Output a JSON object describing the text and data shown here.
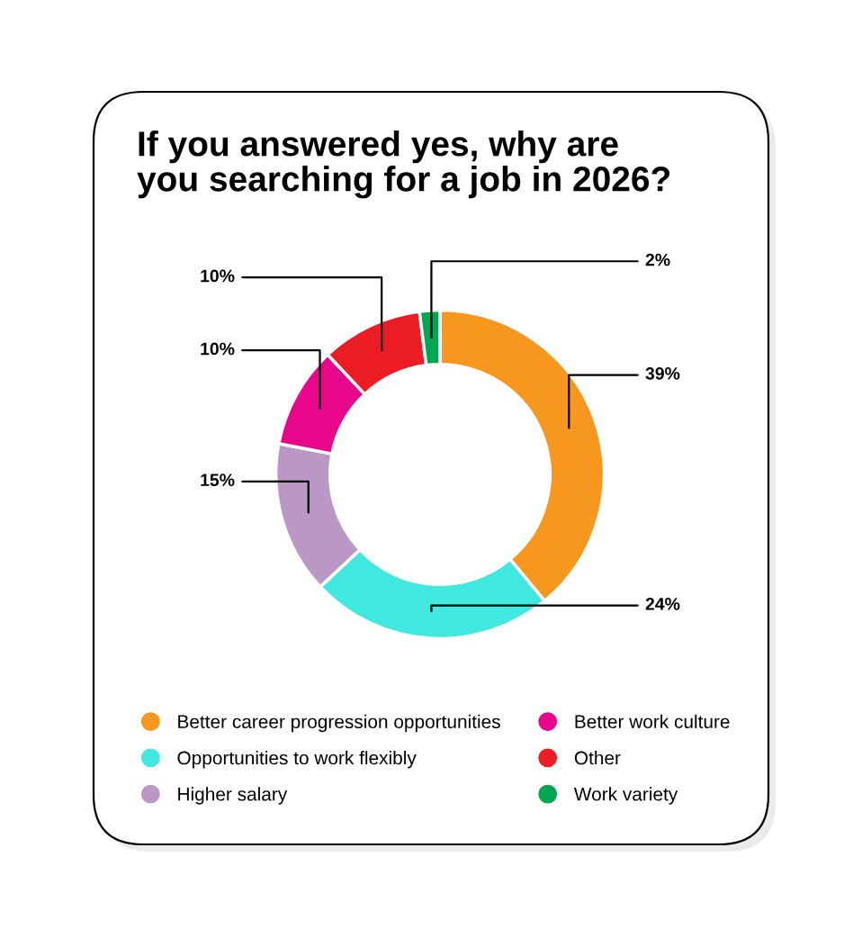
{
  "chart_data": {
    "type": "donut",
    "title": "If you answered yes, why are\nyou searching for a job in 2026?",
    "categories": [
      "Better career progression opportunities",
      "Opportunities to work flexibly",
      "Higher salary",
      "Better work culture",
      "Other",
      "Work variety"
    ],
    "values": [
      39,
      24,
      15,
      10,
      10,
      2
    ],
    "colors": [
      "#f7971e",
      "#40e8e0",
      "#bb97c6",
      "#e8068a",
      "#ec1c24",
      "#00a650"
    ],
    "value_labels": [
      "39%",
      "24%",
      "15%",
      "10%",
      "10%",
      "2%"
    ],
    "legend": "bottom"
  }
}
